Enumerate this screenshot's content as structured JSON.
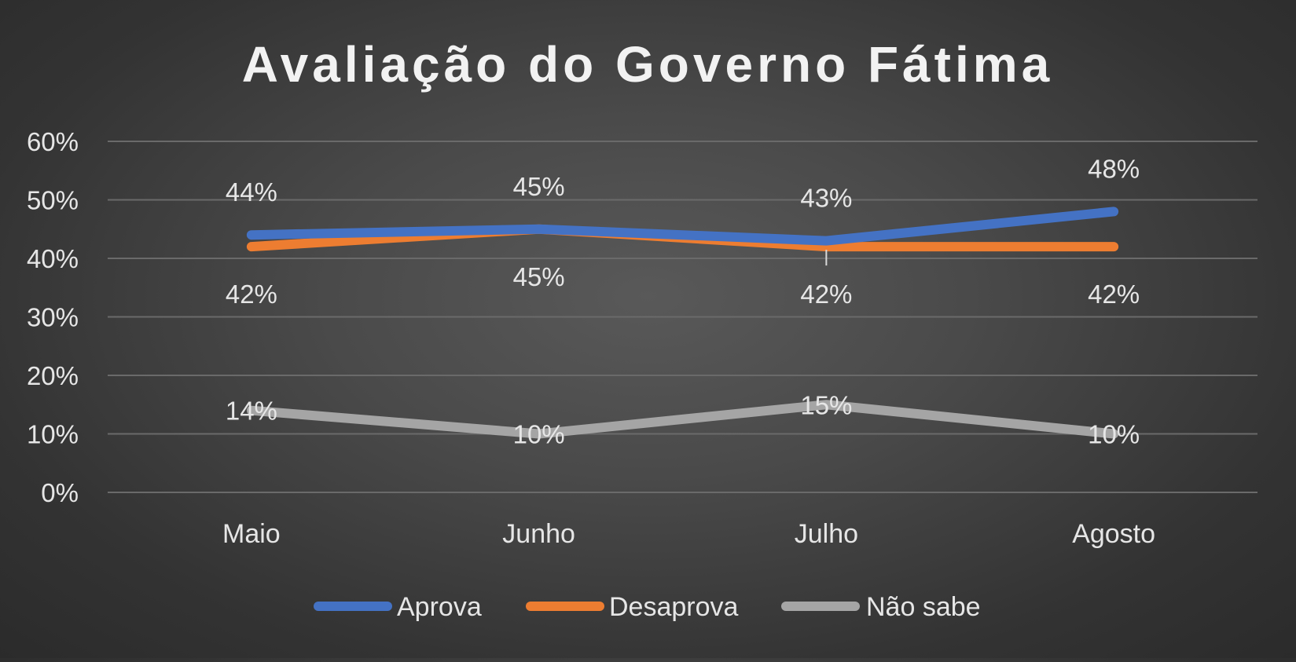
{
  "chart_data": {
    "type": "line",
    "title": "Avaliação do Governo Fátima",
    "categories": [
      "Maio",
      "Junho",
      "Julho",
      "Agosto"
    ],
    "ylim": [
      0,
      60
    ],
    "yticks": [
      "0%",
      "10%",
      "20%",
      "30%",
      "40%",
      "50%",
      "60%"
    ],
    "grid": true,
    "legend_position": "bottom",
    "series": [
      {
        "name": "Aprova",
        "color": "#4472C4",
        "values": [
          44,
          45,
          43,
          48
        ],
        "labels": [
          "44%",
          "45%",
          "43%",
          "48%"
        ]
      },
      {
        "name": "Desaprova",
        "color": "#ED7D31",
        "values": [
          42,
          45,
          42,
          42
        ],
        "labels": [
          "42%",
          "45%",
          "42%",
          "42%"
        ]
      },
      {
        "name": "Não sabe",
        "color": "#A5A5A5",
        "values": [
          14,
          10,
          15,
          10
        ],
        "labels": [
          "14%",
          "10%",
          "15%",
          "10%"
        ]
      }
    ]
  }
}
